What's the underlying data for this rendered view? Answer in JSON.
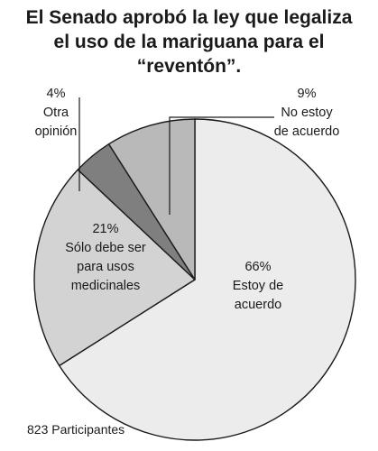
{
  "chart_data": {
    "type": "pie",
    "title_lines": [
      "El Senado aprobó la ley que legaliza",
      "el uso de la mariguana para el",
      "“reventón”."
    ],
    "slices": [
      {
        "key": "agree",
        "value": 66,
        "pct_label": "66%",
        "label_lines": [
          "Estoy de",
          "acuerdo"
        ],
        "color": "#ececec"
      },
      {
        "key": "medical",
        "value": 21,
        "pct_label": "21%",
        "label_lines": [
          "Sólo debe ser",
          "para usos",
          "medicinales"
        ],
        "color": "#d3d3d3"
      },
      {
        "key": "other",
        "value": 4,
        "pct_label": "4%",
        "label_lines": [
          "Otra",
          "opinión"
        ],
        "color": "#7f7f7f"
      },
      {
        "key": "disagree",
        "value": 9,
        "pct_label": "9%",
        "label_lines": [
          "No estoy",
          "de acuerdo"
        ],
        "color": "#b9b9b9"
      }
    ],
    "footer": "823 Participantes"
  }
}
